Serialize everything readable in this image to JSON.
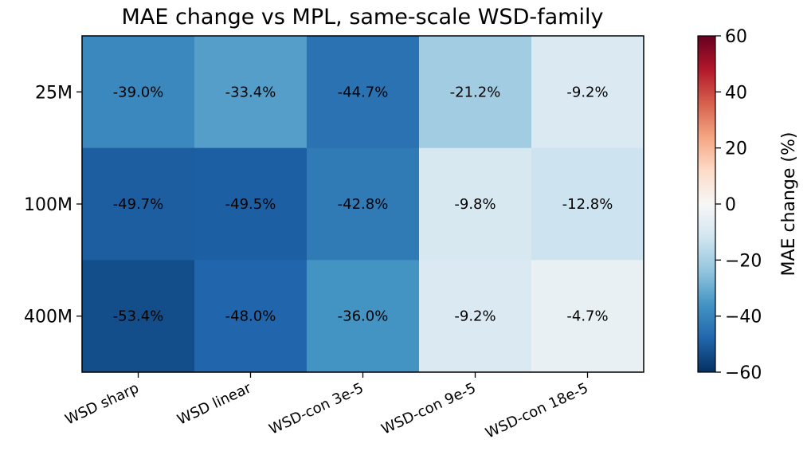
{
  "chart_data": {
    "type": "heatmap",
    "title": "MAE change vs MPL, same-scale WSD-family",
    "x_categories": [
      "WSD sharp",
      "WSD linear",
      "WSD-con 3e-5",
      "WSD-con 9e-5",
      "WSD-con 18e-5"
    ],
    "y_categories": [
      "25M",
      "100M",
      "400M"
    ],
    "values": [
      [
        -39.0,
        -33.4,
        -44.7,
        -21.2,
        -9.2
      ],
      [
        -49.7,
        -49.5,
        -42.8,
        -9.8,
        -12.8
      ],
      [
        -53.4,
        -48.0,
        -36.0,
        -9.2,
        -4.7
      ]
    ],
    "cell_labels": [
      [
        "-39.0%",
        "-33.4%",
        "-44.7%",
        "-21.2%",
        "-9.2%"
      ],
      [
        "-49.7%",
        "-49.5%",
        "-42.8%",
        "-9.8%",
        "-12.8%"
      ],
      [
        "-53.4%",
        "-48.0%",
        "-36.0%",
        "-9.2%",
        "-4.7%"
      ]
    ],
    "colorbar": {
      "label": "MAE change (%)",
      "range": [
        -60,
        60
      ],
      "ticks": [
        60,
        40,
        20,
        0,
        -20,
        -40,
        -60
      ],
      "tick_labels": [
        "60",
        "40",
        "20",
        "0",
        "−20",
        "−40",
        "−60"
      ],
      "colormap": "RdBu_r"
    }
  }
}
